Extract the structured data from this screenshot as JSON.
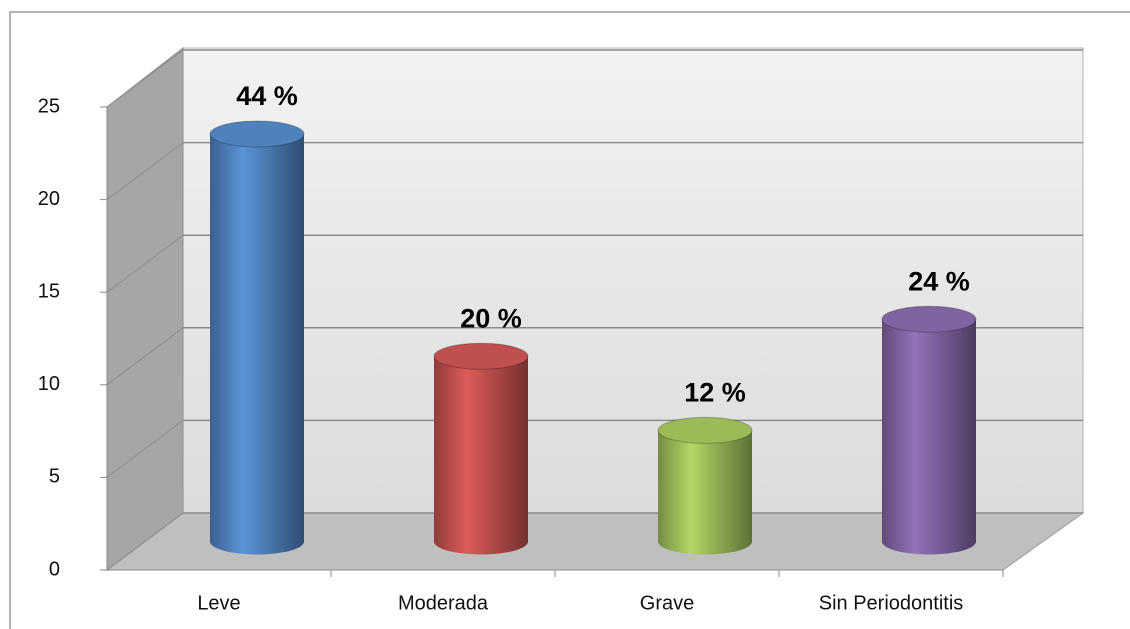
{
  "chart_data": {
    "type": "bar3d",
    "categories": [
      "Leve",
      "Moderada",
      "Grave",
      "Sin Periodontitis"
    ],
    "values": [
      22,
      10,
      6,
      12
    ],
    "annotations": [
      "44 %",
      "20 %",
      "12 %",
      "24 %"
    ],
    "colors": [
      "#4f81bd",
      "#c0504d",
      "#9bbb59",
      "#8064a2"
    ],
    "ylim": [
      0,
      25
    ],
    "yticks": [
      0,
      5,
      10,
      15,
      20,
      25
    ],
    "grid": true
  }
}
